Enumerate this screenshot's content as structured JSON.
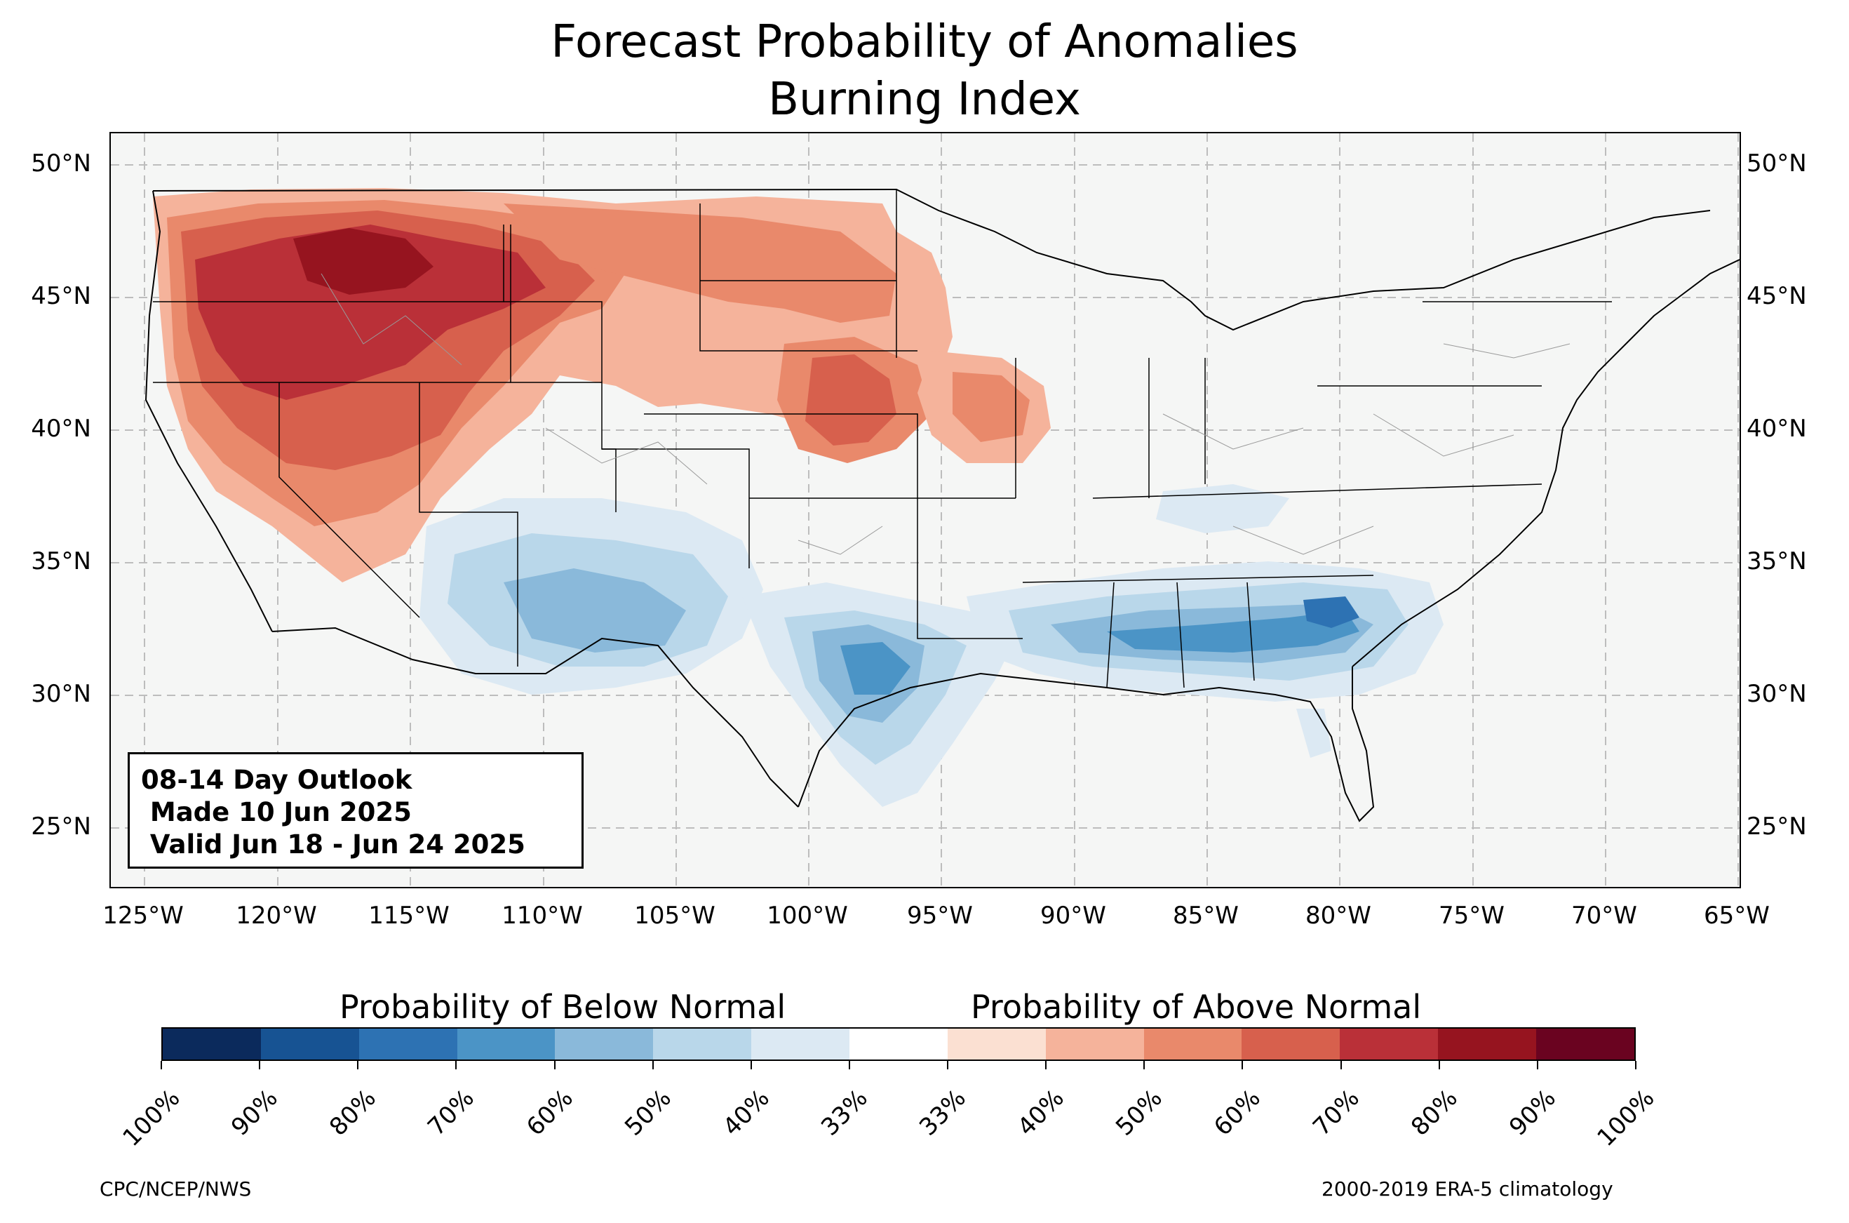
{
  "title": {
    "line1": "Forecast Probability of Anomalies",
    "line2": "Burning Index"
  },
  "map": {
    "lat_labels": [
      "50°N",
      "45°N",
      "40°N",
      "35°N",
      "30°N",
      "25°N"
    ],
    "lon_labels": [
      "125°W",
      "120°W",
      "115°W",
      "110°W",
      "105°W",
      "100°W",
      "95°W",
      "90°W",
      "85°W",
      "80°W",
      "75°W",
      "70°W",
      "65°W"
    ],
    "land_color": "#f5f6f5",
    "anomaly_regions": [
      {
        "name": "west-interior-above",
        "category": "above",
        "level": "80%"
      },
      {
        "name": "northern-plains-above",
        "category": "above",
        "level": "60%"
      },
      {
        "name": "central-plains-above",
        "category": "above",
        "level": "60%"
      },
      {
        "name": "southwest-below",
        "category": "below",
        "level": "60%"
      },
      {
        "name": "texas-below",
        "category": "below",
        "level": "70%"
      },
      {
        "name": "gulf-coast-southeast-below",
        "category": "below",
        "level": "70%"
      }
    ]
  },
  "info_box": {
    "line1": "08-14 Day Outlook",
    "line2": " Made 10 Jun 2025",
    "line3": " Valid Jun 18 - Jun 24 2025"
  },
  "colorbar": {
    "below_label": "Probability of Below Normal",
    "above_label": "Probability of Above Normal",
    "colors": [
      "#0b2a5c",
      "#175393",
      "#2d72b3",
      "#4b94c6",
      "#8ab9da",
      "#b9d7ea",
      "#dce9f3",
      "#ffffff",
      "#fbe0d2",
      "#f5b39b",
      "#e9896b",
      "#d7604d",
      "#ba3038",
      "#96141f",
      "#6a0320"
    ],
    "tick_labels": [
      "100%",
      "90%",
      "80%",
      "70%",
      "60%",
      "50%",
      "40%",
      "33%",
      "33%",
      "40%",
      "50%",
      "60%",
      "70%",
      "80%",
      "90%",
      "100%"
    ]
  },
  "credits": {
    "left": "CPC/NCEP/NWS",
    "right": "2000-2019 ERA-5 climatology"
  }
}
